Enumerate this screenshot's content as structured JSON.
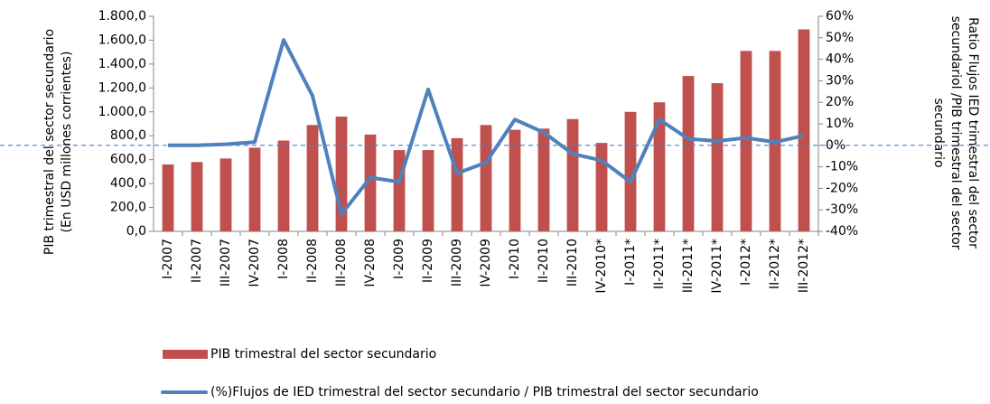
{
  "chart_data": {
    "type": "bar_line",
    "categories": [
      "I-2007",
      "II-2007",
      "III-2007",
      "IV-2007",
      "I-2008",
      "II-2008",
      "III-2008",
      "IV-2008",
      "I-2009",
      "II-2009",
      "III-2009",
      "IV-2009",
      "I-2010",
      "II-2010",
      "III-2010",
      "IV-2010*",
      "I-2011*",
      "II-2011*",
      "III-2011*",
      "IV-2011*",
      "I-2012*",
      "II-2012*",
      "III-2012*"
    ],
    "series": [
      {
        "name": "PIB trimestral del sector secundario",
        "type": "bar",
        "color": "#c0504d",
        "axis": "y",
        "values": [
          560,
          580,
          610,
          700,
          760,
          890,
          960,
          810,
          680,
          680,
          780,
          890,
          850,
          860,
          940,
          740,
          1000,
          1080,
          1300,
          1240,
          1510,
          1510,
          1690
        ]
      },
      {
        "name": "(%)Flujos de IED trimestral del sector secundario / PIB trimestral del sector secundario",
        "type": "line",
        "color": "#4f81bd",
        "axis": "y2",
        "values": [
          0,
          0,
          0.5,
          1.5,
          49,
          23,
          -32,
          -15,
          -17,
          26,
          -13,
          -8,
          12,
          6,
          -4,
          -7,
          -17,
          12,
          3,
          2,
          3.5,
          1.5,
          4.5
        ]
      }
    ],
    "y_label": [
      "PIB trimestral del sector secundario",
      "(En USD millones corrientes)"
    ],
    "y2_label": [
      "Ratio Flujos IED trimestral del sector",
      "secundariol /PIB trimestral del sector",
      "secundario"
    ],
    "ylim": [
      0,
      1800
    ],
    "yticks": [
      {
        "value": 0,
        "label": "0,0"
      },
      {
        "value": 200,
        "label": "200,0"
      },
      {
        "value": 400,
        "label": "400,0"
      },
      {
        "value": 600,
        "label": "600,0"
      },
      {
        "value": 800,
        "label": "800,0"
      },
      {
        "value": 1000,
        "label": "1.000,0"
      },
      {
        "value": 1200,
        "label": "1.200,0"
      },
      {
        "value": 1400,
        "label": "1.400,0"
      },
      {
        "value": 1600,
        "label": "1.600,0"
      },
      {
        "value": 1800,
        "label": "1.800,0"
      }
    ],
    "y2lim": [
      -40,
      60
    ],
    "y2ticks": [
      {
        "value": -40,
        "label": "-40%"
      },
      {
        "value": -30,
        "label": "-30%"
      },
      {
        "value": -20,
        "label": "-20%"
      },
      {
        "value": -10,
        "label": "-10%"
      },
      {
        "value": 0,
        "label": "0%"
      },
      {
        "value": 10,
        "label": "10%"
      },
      {
        "value": 20,
        "label": "20%"
      },
      {
        "value": 30,
        "label": "30%"
      },
      {
        "value": 40,
        "label": "40%"
      },
      {
        "value": 50,
        "label": "50%"
      },
      {
        "value": 60,
        "label": "60%"
      }
    ],
    "grid": false,
    "legend": "bottom"
  }
}
